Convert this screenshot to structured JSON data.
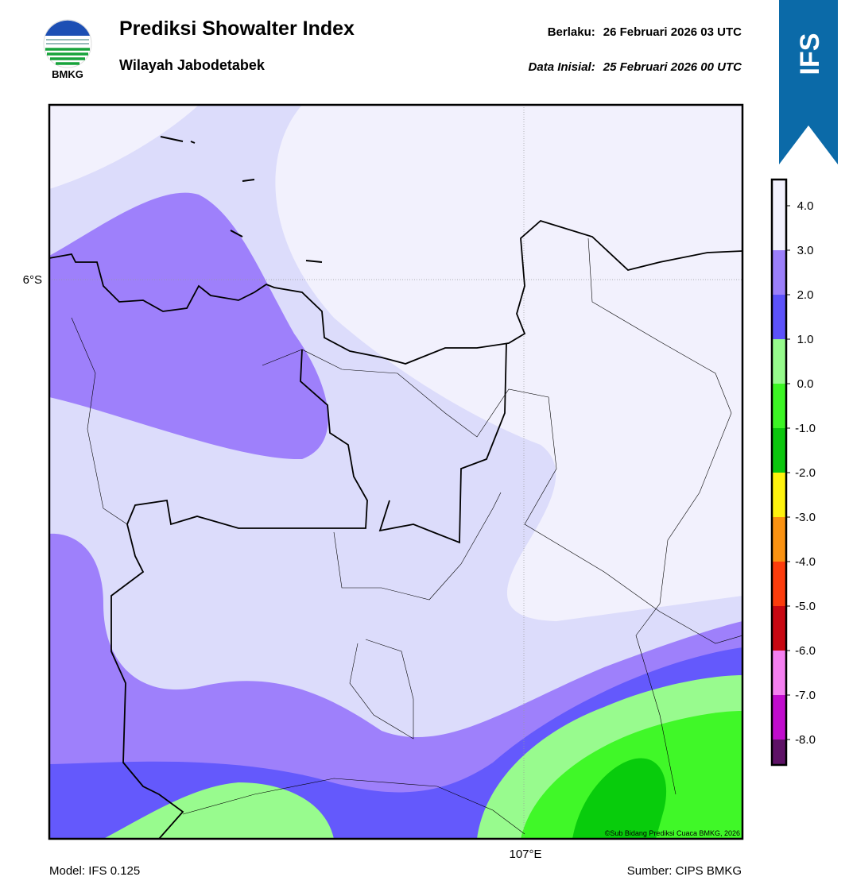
{
  "header": {
    "title": "Prediksi Showalter Index",
    "subtitle": "Wilayah Jabodetabek",
    "valid_label": "Berlaku:",
    "valid_time": "26 Februari 2026 03 UTC",
    "init_label": "Data Inisial:",
    "init_time": "25 Februari 2026 00 UTC",
    "logo_text": "BMKG",
    "model_tag": "IFS"
  },
  "map": {
    "lat_label": "6°S",
    "lon_label": "107°E",
    "credit": "©Sub Bidang Prediksi Cuaca BMKG, 2026"
  },
  "colorbar": {
    "colors": [
      "#f2f1fd",
      "#9b7ffa",
      "#5c52fa",
      "#96fa8c",
      "#3cf524",
      "#0bc60d",
      "#fef20e",
      "#fa9211",
      "#fc3c0c",
      "#c80812",
      "#f47ff0",
      "#c10ccd",
      "#5e1266"
    ],
    "ticks": [
      {
        "value": 4,
        "label": "4.0"
      },
      {
        "value": 3,
        "label": "3.0"
      },
      {
        "value": 2,
        "label": "2.0"
      },
      {
        "value": 1,
        "label": "1.0"
      },
      {
        "value": 0,
        "label": "0.0"
      },
      {
        "value": -1,
        "label": "-1.0"
      },
      {
        "value": -2,
        "label": "-2.0"
      },
      {
        "value": -3,
        "label": "-3.0"
      },
      {
        "value": -4,
        "label": "-4.0"
      },
      {
        "value": -5,
        "label": "-5.0"
      },
      {
        "value": -6,
        "label": "-6.0"
      },
      {
        "value": -7,
        "label": "-7.0"
      },
      {
        "value": -8,
        "label": "-8.0"
      }
    ]
  },
  "footer": {
    "model": "Model: IFS 0.125",
    "source": "Sumber: CIPS BMKG"
  }
}
